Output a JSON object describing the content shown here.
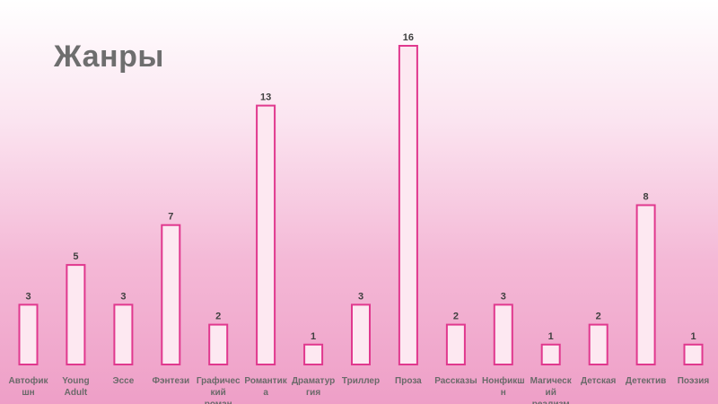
{
  "chart_data": {
    "type": "bar",
    "title": "Жанры",
    "categories": [
      "Автофикшн",
      "Young Adult",
      "Эссе",
      "Фэнтези",
      "Графический роман",
      "Романтика",
      "Драматургия",
      "Триллер",
      "Проза",
      "Рассказы",
      "Нонфикшн",
      "Магический реализм",
      "Детская",
      "Детектив",
      "Поэзия"
    ],
    "category_label_lines": [
      [
        "Автофик",
        "шн"
      ],
      [
        "Young",
        "Adult"
      ],
      [
        "Эссе"
      ],
      [
        "Фэнтези"
      ],
      [
        "Графичес",
        "кий",
        "роман"
      ],
      [
        "Романтик",
        "а"
      ],
      [
        "Драматур",
        "гия"
      ],
      [
        "Триллер"
      ],
      [
        "Проза"
      ],
      [
        "Рассказы"
      ],
      [
        "Нонфикш",
        "н"
      ],
      [
        "Магическ",
        "ий",
        "реализм"
      ],
      [
        "Детская"
      ],
      [
        "Детектив"
      ],
      [
        "Поэзия"
      ]
    ],
    "values": [
      3,
      5,
      3,
      7,
      2,
      13,
      1,
      3,
      16,
      2,
      3,
      1,
      2,
      8,
      1
    ],
    "ylim": [
      0,
      16
    ],
    "grid": false,
    "legend": "none",
    "colors": {
      "bar_outline": "#e0388e",
      "bar_fill": "#fde8f1",
      "title": "#6e6e6e"
    }
  }
}
